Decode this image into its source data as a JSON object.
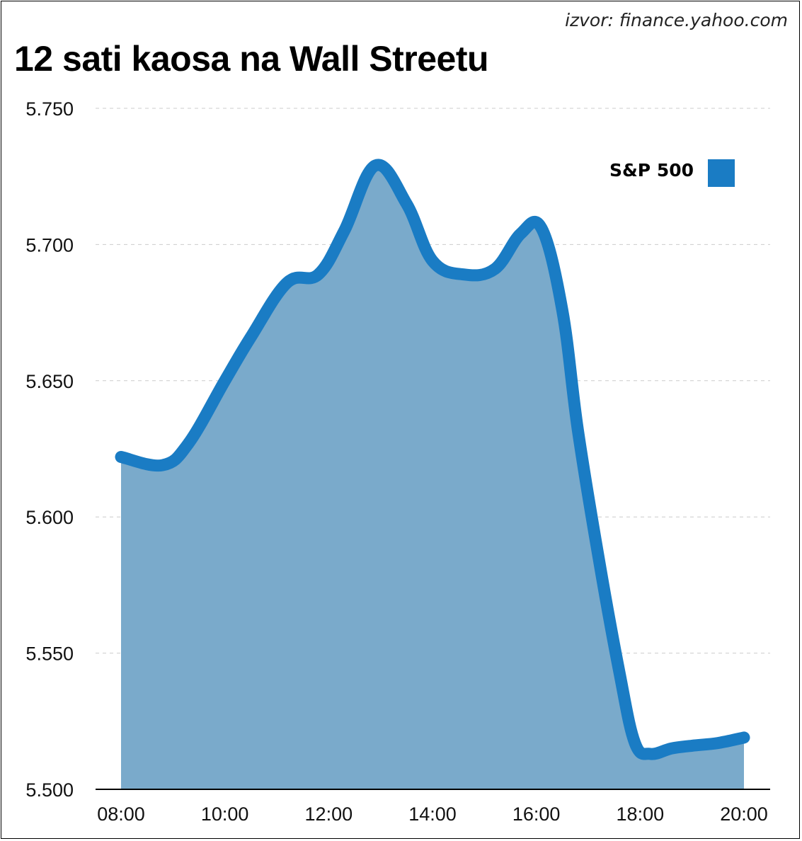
{
  "source": "izvor: finance.yahoo.com",
  "title": "12 sati kaosa na Wall Streetu",
  "colors": {
    "line": "#1a7cc4",
    "fill": "#7aaacb",
    "grid": "#cccccc",
    "axis": "#000000"
  },
  "chart_data": {
    "type": "area",
    "title": "12 sati kaosa na Wall Streetu",
    "xlabel": "",
    "ylabel": "",
    "x_ticks": [
      "08:00",
      "10:00",
      "12:00",
      "14:00",
      "16:00",
      "18:00",
      "20:00"
    ],
    "y_ticks": [
      "5.500",
      "5.550",
      "5.600",
      "5.650",
      "5.700",
      "5.750"
    ],
    "ylim": [
      5500,
      5750
    ],
    "xlim_hours": [
      8,
      20
    ],
    "grid": true,
    "legend_position": "top-right",
    "series": [
      {
        "name": "S&P 500",
        "x": [
          8.0,
          8.8,
          9.3,
          10.0,
          10.5,
          11.2,
          11.8,
          12.3,
          12.9,
          13.5,
          14.0,
          14.6,
          15.2,
          15.7,
          16.1,
          16.5,
          16.8,
          17.2,
          17.6,
          17.9,
          18.2,
          18.6,
          19.0,
          19.5,
          20.0
        ],
        "y": [
          5622,
          5619,
          5627,
          5650,
          5666,
          5686,
          5689,
          5705,
          5729,
          5715,
          5694,
          5689,
          5691,
          5704,
          5706,
          5676,
          5632,
          5585,
          5543,
          5517,
          5513,
          5515,
          5516,
          5517,
          5519
        ]
      }
    ]
  }
}
